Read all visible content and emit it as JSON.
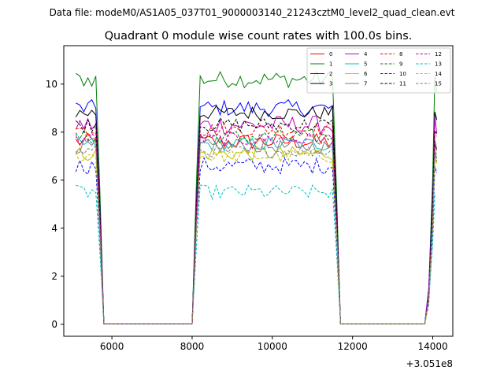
{
  "figure": {
    "suptitle": "Data file: modeM0/AS1A05_037T01_9000003140_21243cztM0_level2_quad_clean.evt"
  },
  "chart_data": {
    "type": "line",
    "title": "Quadrant 0 module wise count rates with 100.0s bins.",
    "xlabel": "",
    "ylabel": "",
    "x_offset_label": "+3.051e8",
    "xlim": [
      4800,
      14500
    ],
    "ylim": [
      -0.5,
      11.6
    ],
    "xticks": [
      6000,
      8000,
      10000,
      12000,
      14000
    ],
    "xtick_labels": [
      "6000",
      "8000",
      "10000",
      "12000",
      "14000"
    ],
    "yticks": [
      0,
      2,
      4,
      6,
      8,
      10
    ],
    "ytick_labels": [
      "0",
      "2",
      "4",
      "6",
      "8",
      "10"
    ],
    "legend_position": "top-right",
    "legend_columns": 4,
    "segments": [
      {
        "start": 5100,
        "end": 5800,
        "ramp_down": [
          [
            5700,
            0.55
          ],
          [
            5800,
            0.0
          ]
        ]
      },
      {
        "start": 8000,
        "end": 11700,
        "ramp_up": [
          [
            8000,
            0.0
          ],
          [
            8100,
            0.55
          ]
        ],
        "ramp_down": [
          [
            11600,
            0.55
          ],
          [
            11700,
            0.0
          ]
        ]
      },
      {
        "start": 13800,
        "end": 14100,
        "ramp_up": [
          [
            13800,
            0.0
          ],
          [
            13900,
            0.15
          ],
          [
            14000,
            0.6
          ]
        ]
      }
    ],
    "series": [
      {
        "name": "0",
        "color": "#ff0000",
        "dash": false,
        "base": 7.6,
        "noise": 0.35
      },
      {
        "name": "1",
        "color": "#008000",
        "dash": false,
        "base": 10.2,
        "noise": 0.35
      },
      {
        "name": "2",
        "color": "#0000ff",
        "dash": false,
        "base": 9.0,
        "noise": 0.35
      },
      {
        "name": "3",
        "color": "#000000",
        "dash": false,
        "base": 8.8,
        "noise": 0.3
      },
      {
        "name": "4",
        "color": "#bf00bf",
        "dash": false,
        "base": 8.3,
        "noise": 0.4
      },
      {
        "name": "5",
        "color": "#00bfbf",
        "dash": false,
        "base": 7.5,
        "noise": 0.3
      },
      {
        "name": "6",
        "color": "#bfbf00",
        "dash": false,
        "base": 7.1,
        "noise": 0.3
      },
      {
        "name": "7",
        "color": "#808080",
        "dash": false,
        "base": 7.4,
        "noise": 0.3
      },
      {
        "name": "8",
        "color": "#ff0000",
        "dash": true,
        "base": 8.1,
        "noise": 0.3
      },
      {
        "name": "9",
        "color": "#008000",
        "dash": true,
        "base": 7.8,
        "noise": 0.3
      },
      {
        "name": "10",
        "color": "#0000ff",
        "dash": true,
        "base": 6.6,
        "noise": 0.35
      },
      {
        "name": "11",
        "color": "#000000",
        "dash": true,
        "base": 8.3,
        "noise": 0.3
      },
      {
        "name": "12",
        "color": "#bf00bf",
        "dash": true,
        "base": 7.7,
        "noise": 0.3
      },
      {
        "name": "13",
        "color": "#00bfbf",
        "dash": true,
        "base": 5.5,
        "noise": 0.3
      },
      {
        "name": "14",
        "color": "#bfbf00",
        "dash": true,
        "base": 7.0,
        "noise": 0.3
      },
      {
        "name": "15",
        "color": "#808080",
        "dash": true,
        "base": 7.2,
        "noise": 0.25
      }
    ]
  }
}
